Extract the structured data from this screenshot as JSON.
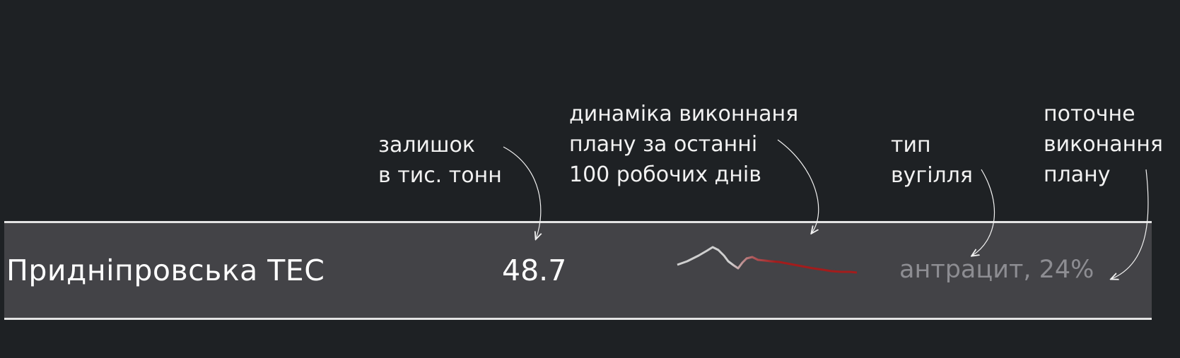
{
  "annotations": {
    "remainder": [
      "залишок",
      "в тис. тонн"
    ],
    "dynamics": [
      "динаміка виконнаня",
      "плану за останні",
      "100 робочих днів"
    ],
    "coal_type": [
      "тип",
      "вугілля"
    ],
    "current": [
      "поточне",
      "виконання",
      "плану"
    ]
  },
  "row": {
    "plant_name": "Придніпровська ТЕС",
    "stock": "48.7",
    "coal_info": "антрацит, 24%"
  },
  "colors": {
    "background": "#1e2124",
    "row_background": "#434347",
    "row_border": "#e4e4e4",
    "sparkline_start": "#cfcfcf",
    "sparkline_end": "#a31c1c",
    "muted_text": "#8d8d92"
  }
}
